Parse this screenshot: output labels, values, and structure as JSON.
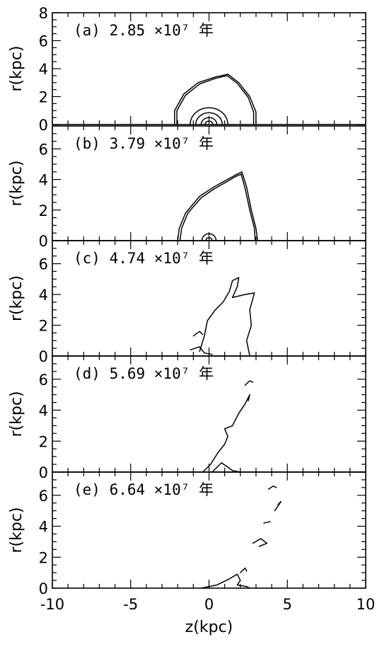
{
  "chart_data": {
    "type": "contour",
    "xlabel": "z(kpc)",
    "ylabel": "r(kpc)",
    "xlim": [
      -10,
      10
    ],
    "xticks": [
      -10,
      -5,
      0,
      5,
      10
    ],
    "panels": [
      {
        "label": "(a) 2.85 ×10⁷ 年",
        "ylim": [
          0,
          8
        ],
        "yticks": [
          0,
          2,
          4,
          6,
          8
        ],
        "shells": [
          [
            [
              -2.2,
              0
            ],
            [
              -2.2,
              1.0
            ],
            [
              -1.6,
              2.2
            ],
            [
              -0.7,
              3.0
            ],
            [
              0.4,
              3.4
            ],
            [
              1.2,
              3.6
            ],
            [
              1.9,
              3.0
            ],
            [
              2.6,
              2.0
            ],
            [
              3.0,
              0.9
            ],
            [
              3.0,
              0
            ]
          ],
          [
            [
              -2.05,
              0
            ],
            [
              -2.05,
              1.0
            ],
            [
              -1.5,
              2.1
            ],
            [
              -0.6,
              2.9
            ],
            [
              0.4,
              3.3
            ],
            [
              1.15,
              3.5
            ],
            [
              1.8,
              2.95
            ],
            [
              2.5,
              1.95
            ],
            [
              2.85,
              0.9
            ],
            [
              2.85,
              0
            ]
          ]
        ],
        "core_rings": [
          0.25,
          0.5,
          0.85,
          1.2
        ]
      },
      {
        "label": "(b) 3.79 ×10⁷ 年",
        "ylim": [
          0,
          7.5
        ],
        "yticks": [
          0,
          2,
          4,
          6
        ],
        "shells": [
          [
            [
              -2.0,
              0
            ],
            [
              -1.9,
              0.8
            ],
            [
              -1.5,
              1.8
            ],
            [
              -0.6,
              2.9
            ],
            [
              0.3,
              3.5
            ],
            [
              1.0,
              3.9
            ],
            [
              1.7,
              4.3
            ],
            [
              2.1,
              4.5
            ],
            [
              2.4,
              3.5
            ],
            [
              2.7,
              2.0
            ],
            [
              3.0,
              0.8
            ],
            [
              3.1,
              0
            ]
          ],
          [
            [
              -1.85,
              0
            ],
            [
              -1.75,
              0.8
            ],
            [
              -1.35,
              1.8
            ],
            [
              -0.5,
              2.8
            ],
            [
              0.35,
              3.4
            ],
            [
              1.05,
              3.8
            ],
            [
              1.7,
              4.2
            ],
            [
              2.05,
              4.35
            ],
            [
              2.3,
              3.45
            ],
            [
              2.6,
              2.0
            ],
            [
              2.9,
              0.8
            ],
            [
              2.95,
              0
            ]
          ]
        ],
        "core_rings": [
          0.2,
          0.45
        ]
      },
      {
        "label": "(c) 4.74 ×10⁷ 年",
        "ylim": [
          0,
          7.5
        ],
        "yticks": [
          0,
          2,
          4,
          6
        ],
        "shells": [
          [
            [
              -0.6,
              0.3
            ],
            [
              -0.3,
              1.3
            ],
            [
              -0.1,
              2.3
            ],
            [
              0.4,
              3.0
            ],
            [
              0.9,
              3.5
            ],
            [
              1.3,
              4.2
            ],
            [
              1.5,
              4.9
            ],
            [
              1.9,
              5.1
            ],
            [
              1.8,
              4.5
            ],
            [
              1.5,
              3.8
            ],
            [
              2.3,
              4.0
            ],
            [
              2.9,
              4.1
            ],
            [
              2.6,
              3.0
            ],
            [
              2.7,
              2.0
            ],
            [
              2.4,
              1.0
            ],
            [
              2.6,
              0
            ]
          ],
          [
            [
              -1.2,
              0.4
            ],
            [
              -0.6,
              0.6
            ],
            [
              -0.3,
              0.2
            ],
            [
              0.2,
              0.1
            ]
          ],
          [
            [
              -1.0,
              1.3
            ],
            [
              -0.6,
              1.6
            ],
            [
              -0.4,
              1.4
            ]
          ]
        ],
        "core_rings": []
      },
      {
        "label": "(d) 5.69 ×10⁷ 年",
        "ylim": [
          0,
          7.5
        ],
        "yticks": [
          0,
          2,
          4,
          6
        ],
        "shells": [
          [
            [
              -0.4,
              0
            ],
            [
              0.1,
              0.5
            ],
            [
              0.6,
              1.3
            ],
            [
              1.0,
              1.8
            ],
            [
              1.2,
              2.3
            ],
            [
              1.0,
              2.8
            ],
            [
              1.5,
              3.0
            ],
            [
              1.9,
              3.8
            ],
            [
              2.3,
              4.4
            ],
            [
              2.6,
              5.0
            ],
            [
              2.5,
              4.6
            ]
          ],
          [
            [
              0.2,
              0
            ],
            [
              0.8,
              0.6
            ],
            [
              1.5,
              0.1
            ],
            [
              2.0,
              0.0
            ]
          ],
          [
            [
              2.3,
              5.6
            ],
            [
              2.6,
              5.9
            ],
            [
              2.8,
              5.8
            ]
          ]
        ],
        "core_rings": []
      },
      {
        "label": "(e) 6.64 ×10⁷ 年",
        "ylim": [
          0,
          7.5
        ],
        "yticks": [
          0,
          2,
          4,
          6
        ],
        "shells": [
          [
            [
              -0.5,
              0
            ],
            [
              0.5,
              0.2
            ],
            [
              1.3,
              0.6
            ],
            [
              1.8,
              0.9
            ],
            [
              2.0,
              0.5
            ],
            [
              1.8,
              0.2
            ],
            [
              2.4,
              0.1
            ],
            [
              2.6,
              0.0
            ]
          ],
          [
            [
              2.0,
              1.0
            ],
            [
              2.3,
              1.3
            ],
            [
              2.4,
              1.1
            ]
          ],
          [
            [
              2.8,
              2.9
            ],
            [
              3.3,
              3.2
            ],
            [
              3.7,
              2.9
            ],
            [
              3.2,
              2.7
            ]
          ],
          [
            [
              3.5,
              4.2
            ],
            [
              3.9,
              4.3
            ]
          ],
          [
            [
              4.2,
              5.0
            ],
            [
              4.6,
              5.6
            ],
            [
              4.4,
              5.4
            ]
          ],
          [
            [
              3.8,
              6.4
            ],
            [
              4.1,
              6.6
            ],
            [
              4.3,
              6.5
            ]
          ]
        ],
        "core_rings": []
      }
    ]
  }
}
